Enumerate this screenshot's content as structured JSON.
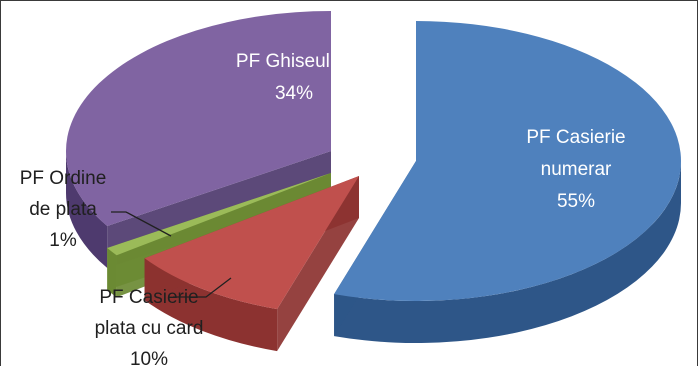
{
  "chart_data": {
    "type": "pie",
    "style": "3d-exploded",
    "slices": [
      {
        "name": "PF Casierie numerar",
        "value": 55,
        "label_lines": [
          "PF Casierie",
          "numerar",
          "55%"
        ],
        "label_placement": "inside",
        "color": "#4F81BD",
        "side_color": "#2E5688"
      },
      {
        "name": "PF Casierie plata cu card",
        "value": 10,
        "label_lines": [
          "PF Casierie",
          "plata cu card",
          "10%"
        ],
        "label_placement": "outside",
        "color": "#C0504D",
        "side_color": "#8C3230"
      },
      {
        "name": "PF Ordine de plata",
        "value": 1,
        "label_lines": [
          "PF Ordine",
          "de plata",
          "1%"
        ],
        "label_placement": "outside",
        "color": "#9BBB59",
        "side_color": "#6B8A33"
      },
      {
        "name": "PF Ghiseul.ro",
        "value": 34,
        "label_lines": [
          "PF Ghiseul.ro",
          "34%"
        ],
        "label_placement": "inside",
        "color": "#8064A2",
        "side_color": "#4E3A6E"
      }
    ]
  }
}
